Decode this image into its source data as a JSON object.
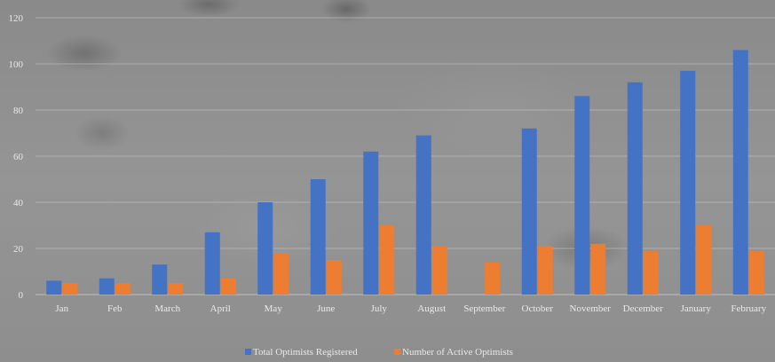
{
  "chart_data": {
    "type": "bar",
    "categories": [
      "Jan",
      "Feb",
      "March",
      "April",
      "May",
      "June",
      "July",
      "August",
      "September",
      "October",
      "November",
      "December",
      "January",
      "February"
    ],
    "series": [
      {
        "name": "Total Optimists Registered",
        "color": "#4472c4",
        "values": [
          6,
          7,
          13,
          27,
          40,
          50,
          62,
          69,
          0,
          72,
          86,
          92,
          97,
          106
        ]
      },
      {
        "name": "Number of Active Optimists",
        "color": "#ed7d31",
        "values": [
          5,
          5,
          5,
          7,
          18,
          15,
          30,
          21,
          14,
          21,
          22,
          19,
          30,
          19
        ]
      }
    ],
    "title": "",
    "xlabel": "",
    "ylabel": "",
    "ylim": [
      0,
      120
    ],
    "yticks": [
      "0",
      "20",
      "40",
      "60",
      "80",
      "100",
      "120"
    ],
    "grid": true,
    "legend_position": "bottom"
  }
}
